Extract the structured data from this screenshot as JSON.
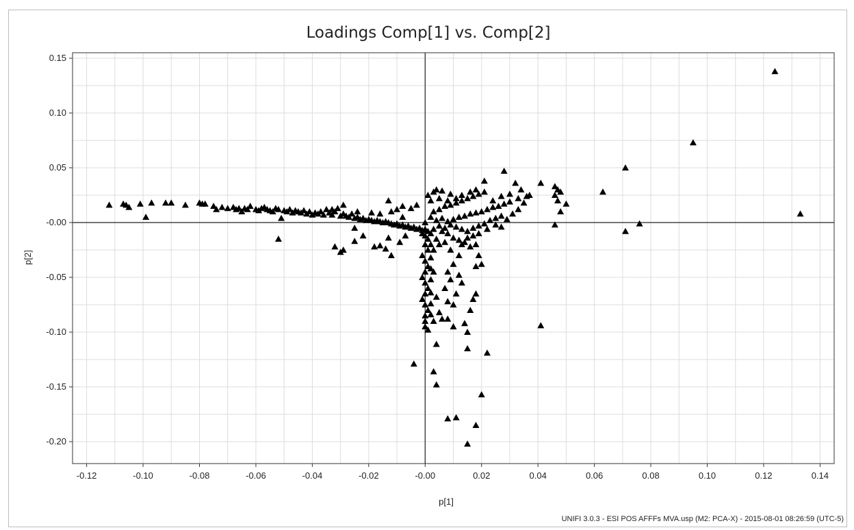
{
  "chart_data": {
    "type": "scatter",
    "title": "Loadings Comp[1] vs. Comp[2]",
    "xlabel": "p[1]",
    "ylabel": "p[2]",
    "xlim": [
      -0.125,
      0.145
    ],
    "ylim": [
      -0.22,
      0.155
    ],
    "xticks": [
      -0.12,
      -0.1,
      -0.08,
      -0.06,
      -0.04,
      -0.02,
      0.0,
      0.02,
      0.04,
      0.06,
      0.08,
      0.1,
      0.12,
      0.14
    ],
    "xtick_labels": [
      "-0.12",
      "-0.10",
      "-0.08",
      "-0.06",
      "-0.04",
      "-0.02",
      "-0.00",
      "0.02",
      "0.04",
      "0.06",
      "0.08",
      "0.10",
      "0.12",
      "0.14"
    ],
    "yticks": [
      0.15,
      0.1,
      0.05,
      0.0,
      -0.05,
      -0.1,
      -0.15,
      -0.2
    ],
    "ytick_labels": [
      "0.15",
      "0.10",
      "0.05",
      "-0.00",
      "-0.05",
      "-0.10",
      "-0.15",
      "-0.20"
    ],
    "grid": true,
    "marker": "triangle",
    "marker_color": "#000000",
    "points": [
      [
        -0.112,
        0.016
      ],
      [
        -0.107,
        0.017
      ],
      [
        -0.106,
        0.016
      ],
      [
        -0.105,
        0.014
      ],
      [
        -0.101,
        0.017
      ],
      [
        -0.099,
        0.005
      ],
      [
        -0.097,
        0.018
      ],
      [
        -0.092,
        0.018
      ],
      [
        -0.09,
        0.018
      ],
      [
        -0.085,
        0.016
      ],
      [
        -0.08,
        0.018
      ],
      [
        -0.079,
        0.017
      ],
      [
        -0.078,
        0.017
      ],
      [
        -0.075,
        0.015
      ],
      [
        -0.074,
        0.012
      ],
      [
        -0.072,
        0.014
      ],
      [
        -0.07,
        0.013
      ],
      [
        -0.068,
        0.014
      ],
      [
        -0.067,
        0.012
      ],
      [
        -0.066,
        0.013
      ],
      [
        -0.065,
        0.01
      ],
      [
        -0.064,
        0.013
      ],
      [
        -0.063,
        0.012
      ],
      [
        -0.062,
        0.015
      ],
      [
        -0.06,
        0.012
      ],
      [
        -0.059,
        0.011
      ],
      [
        -0.058,
        0.013
      ],
      [
        -0.057,
        0.014
      ],
      [
        -0.056,
        0.012
      ],
      [
        -0.055,
        0.011
      ],
      [
        -0.054,
        0.01
      ],
      [
        -0.053,
        0.013
      ],
      [
        -0.052,
        0.012
      ],
      [
        -0.051,
        0.004
      ],
      [
        -0.052,
        -0.015
      ],
      [
        -0.05,
        0.011
      ],
      [
        -0.049,
        0.01
      ],
      [
        -0.048,
        0.012
      ],
      [
        -0.047,
        0.009
      ],
      [
        -0.046,
        0.011
      ],
      [
        -0.045,
        0.01
      ],
      [
        -0.044,
        0.009
      ],
      [
        -0.043,
        0.011
      ],
      [
        -0.042,
        0.008
      ],
      [
        -0.041,
        0.01
      ],
      [
        -0.04,
        0.007
      ],
      [
        -0.039,
        0.009
      ],
      [
        -0.038,
        0.008
      ],
      [
        -0.037,
        0.01
      ],
      [
        -0.036,
        0.007
      ],
      [
        -0.035,
        0.012
      ],
      [
        -0.034,
        0.009
      ],
      [
        -0.033,
        0.007
      ],
      [
        -0.032,
        0.01
      ],
      [
        -0.031,
        0.013
      ],
      [
        -0.03,
        0.006
      ],
      [
        -0.029,
        0.008
      ],
      [
        -0.028,
        0.006
      ],
      [
        -0.027,
        0.005
      ],
      [
        -0.026,
        0.008
      ],
      [
        -0.025,
        0.004
      ],
      [
        -0.024,
        0.005
      ],
      [
        -0.023,
        0.003
      ],
      [
        -0.022,
        0.004
      ],
      [
        -0.021,
        0.002
      ],
      [
        -0.02,
        0.003
      ],
      [
        -0.019,
        0.002
      ],
      [
        -0.018,
        0.001
      ],
      [
        -0.017,
        0.002
      ],
      [
        -0.016,
        0.001
      ],
      [
        -0.015,
        0.0
      ],
      [
        -0.014,
        0.001
      ],
      [
        -0.013,
        0.0
      ],
      [
        -0.012,
        -0.001
      ],
      [
        -0.011,
        -0.002
      ],
      [
        -0.01,
        -0.001
      ],
      [
        -0.009,
        -0.003
      ],
      [
        -0.008,
        -0.002
      ],
      [
        -0.007,
        -0.004
      ],
      [
        -0.006,
        -0.003
      ],
      [
        -0.005,
        -0.005
      ],
      [
        -0.004,
        -0.004
      ],
      [
        -0.003,
        -0.006
      ],
      [
        -0.002,
        -0.005
      ],
      [
        -0.001,
        -0.007
      ],
      [
        -0.032,
        -0.022
      ],
      [
        -0.03,
        -0.027
      ],
      [
        -0.029,
        -0.025
      ],
      [
        -0.025,
        -0.017
      ],
      [
        -0.025,
        -0.005
      ],
      [
        -0.022,
        -0.012
      ],
      [
        -0.018,
        -0.022
      ],
      [
        -0.016,
        -0.021
      ],
      [
        -0.014,
        -0.024
      ],
      [
        -0.012,
        -0.03
      ],
      [
        -0.013,
        -0.014
      ],
      [
        -0.009,
        -0.018
      ],
      [
        -0.007,
        -0.012
      ],
      [
        -0.013,
        0.02
      ],
      [
        -0.008,
        0.015
      ],
      [
        -0.005,
        0.013
      ],
      [
        -0.003,
        0.016
      ],
      [
        -0.01,
        0.012
      ],
      [
        -0.033,
        0.012
      ],
      [
        -0.029,
        0.016
      ],
      [
        -0.024,
        0.01
      ],
      [
        -0.019,
        0.009
      ],
      [
        -0.016,
        0.008
      ],
      [
        -0.012,
        0.01
      ],
      [
        -0.008,
        0.005
      ],
      [
        0.0,
        0.0
      ],
      [
        0.0,
        -0.006
      ],
      [
        0.001,
        -0.008
      ],
      [
        -0.001,
        -0.01
      ],
      [
        0.0,
        -0.012
      ],
      [
        0.001,
        -0.015
      ],
      [
        0.0,
        -0.02
      ],
      [
        0.001,
        -0.025
      ],
      [
        -0.001,
        -0.03
      ],
      [
        0.0,
        -0.035
      ],
      [
        0.001,
        -0.04
      ],
      [
        0.0,
        -0.045
      ],
      [
        -0.001,
        -0.05
      ],
      [
        0.0,
        -0.055
      ],
      [
        0.001,
        -0.06
      ],
      [
        0.0,
        -0.065
      ],
      [
        -0.001,
        -0.07
      ],
      [
        0.0,
        -0.075
      ],
      [
        0.001,
        -0.08
      ],
      [
        0.0,
        -0.085
      ],
      [
        0.0,
        -0.09
      ],
      [
        0.0,
        -0.095
      ],
      [
        0.001,
        -0.098
      ],
      [
        0.002,
        -0.01
      ],
      [
        0.002,
        -0.02
      ],
      [
        0.002,
        -0.032
      ],
      [
        0.002,
        -0.042
      ],
      [
        0.002,
        -0.052
      ],
      [
        0.002,
        -0.064
      ],
      [
        0.002,
        -0.074
      ],
      [
        0.002,
        -0.084
      ],
      [
        0.003,
        -0.09
      ],
      [
        0.003,
        -0.025
      ],
      [
        0.003,
        -0.045
      ],
      [
        0.004,
        -0.068
      ],
      [
        0.005,
        -0.082
      ],
      [
        0.006,
        -0.088
      ],
      [
        0.007,
        -0.06
      ],
      [
        0.008,
        -0.045
      ],
      [
        0.009,
        -0.052
      ],
      [
        0.008,
        -0.072
      ],
      [
        0.01,
        -0.075
      ],
      [
        0.011,
        -0.065
      ],
      [
        0.012,
        -0.048
      ],
      [
        0.013,
        -0.055
      ],
      [
        0.014,
        -0.092
      ],
      [
        0.015,
        -0.1
      ],
      [
        0.016,
        -0.08
      ],
      [
        0.017,
        -0.07
      ],
      [
        0.018,
        -0.065
      ],
      [
        0.018,
        -0.04
      ],
      [
        0.019,
        -0.03
      ],
      [
        0.012,
        -0.03
      ],
      [
        0.01,
        -0.038
      ],
      [
        0.005,
        -0.02
      ],
      [
        0.004,
        -0.015
      ],
      [
        0.007,
        -0.018
      ],
      [
        0.009,
        -0.025
      ],
      [
        0.013,
        -0.02
      ],
      [
        0.016,
        -0.022
      ],
      [
        0.018,
        -0.02
      ],
      [
        0.02,
        -0.038
      ],
      [
        0.008,
        -0.088
      ],
      [
        0.01,
        -0.095
      ],
      [
        0.004,
        -0.111
      ],
      [
        0.003,
        -0.136
      ],
      [
        0.004,
        -0.148
      ],
      [
        -0.004,
        -0.129
      ],
      [
        0.008,
        -0.179
      ],
      [
        0.011,
        -0.178
      ],
      [
        0.015,
        -0.115
      ],
      [
        0.018,
        -0.185
      ],
      [
        0.015,
        -0.202
      ],
      [
        0.02,
        -0.157
      ],
      [
        0.022,
        -0.119
      ],
      [
        0.002,
        0.005
      ],
      [
        0.004,
        0.002
      ],
      [
        0.006,
        0.004
      ],
      [
        0.008,
        0.001
      ],
      [
        0.01,
        0.003
      ],
      [
        0.012,
        0.005
      ],
      [
        0.014,
        0.006
      ],
      [
        0.016,
        0.008
      ],
      [
        0.018,
        0.009
      ],
      [
        0.02,
        0.01
      ],
      [
        0.022,
        0.012
      ],
      [
        0.024,
        0.014
      ],
      [
        0.026,
        0.015
      ],
      [
        0.028,
        0.017
      ],
      [
        0.03,
        0.019
      ],
      [
        0.003,
        0.01
      ],
      [
        0.005,
        0.012
      ],
      [
        0.007,
        0.015
      ],
      [
        0.009,
        0.016
      ],
      [
        0.011,
        0.018
      ],
      [
        0.013,
        0.02
      ],
      [
        0.015,
        0.022
      ],
      [
        0.017,
        0.024
      ],
      [
        0.019,
        0.026
      ],
      [
        0.021,
        0.028
      ],
      [
        0.005,
        -0.003
      ],
      [
        0.007,
        -0.005
      ],
      [
        0.009,
        -0.002
      ],
      [
        0.011,
        -0.004
      ],
      [
        0.013,
        -0.006
      ],
      [
        0.015,
        -0.008
      ],
      [
        0.017,
        -0.005
      ],
      [
        0.019,
        -0.003
      ],
      [
        0.021,
        -0.001
      ],
      [
        0.023,
        0.002
      ],
      [
        0.025,
        0.004
      ],
      [
        0.027,
        0.006
      ],
      [
        0.029,
        0.003
      ],
      [
        0.031,
        0.008
      ],
      [
        0.033,
        0.012
      ],
      [
        0.035,
        0.018
      ],
      [
        0.036,
        0.024
      ],
      [
        0.034,
        0.03
      ],
      [
        0.032,
        0.036
      ],
      [
        0.028,
        0.047
      ],
      [
        0.021,
        0.038
      ],
      [
        0.018,
        0.03
      ],
      [
        0.016,
        0.028
      ],
      [
        0.013,
        0.025
      ],
      [
        0.011,
        0.022
      ],
      [
        0.009,
        0.026
      ],
      [
        0.006,
        0.029
      ],
      [
        0.004,
        0.03
      ],
      [
        0.003,
        0.028
      ],
      [
        0.001,
        0.025
      ],
      [
        0.002,
        0.02
      ],
      [
        0.005,
        0.022
      ],
      [
        0.008,
        0.02
      ],
      [
        0.024,
        0.02
      ],
      [
        0.027,
        0.024
      ],
      [
        0.03,
        0.026
      ],
      [
        0.033,
        0.022
      ],
      [
        0.037,
        0.025
      ],
      [
        0.025,
        -0.002
      ],
      [
        0.027,
        -0.004
      ],
      [
        0.022,
        -0.006
      ],
      [
        0.019,
        -0.01
      ],
      [
        0.017,
        -0.012
      ],
      [
        0.015,
        -0.014
      ],
      [
        0.014,
        -0.018
      ],
      [
        0.012,
        -0.016
      ],
      [
        0.01,
        -0.014
      ],
      [
        0.008,
        -0.01
      ],
      [
        0.006,
        -0.008
      ],
      [
        0.003,
        -0.006
      ],
      [
        0.041,
        0.036
      ],
      [
        0.046,
        0.033
      ],
      [
        0.047,
        0.03
      ],
      [
        0.048,
        0.028
      ],
      [
        0.046,
        0.025
      ],
      [
        0.047,
        0.02
      ],
      [
        0.05,
        0.017
      ],
      [
        0.048,
        0.01
      ],
      [
        0.046,
        -0.002
      ],
      [
        0.063,
        0.028
      ],
      [
        0.071,
        0.05
      ],
      [
        0.071,
        -0.008
      ],
      [
        0.076,
        -0.001
      ],
      [
        0.095,
        0.073
      ],
      [
        0.041,
        -0.094
      ],
      [
        0.124,
        0.138
      ],
      [
        0.133,
        0.008
      ]
    ],
    "footer": "UNIFI 3.0.3 - ESI POS AFFFs MVA.usp (M2: PCA-X) - 2015-08-01 08:26:59 (UTC-5)"
  }
}
